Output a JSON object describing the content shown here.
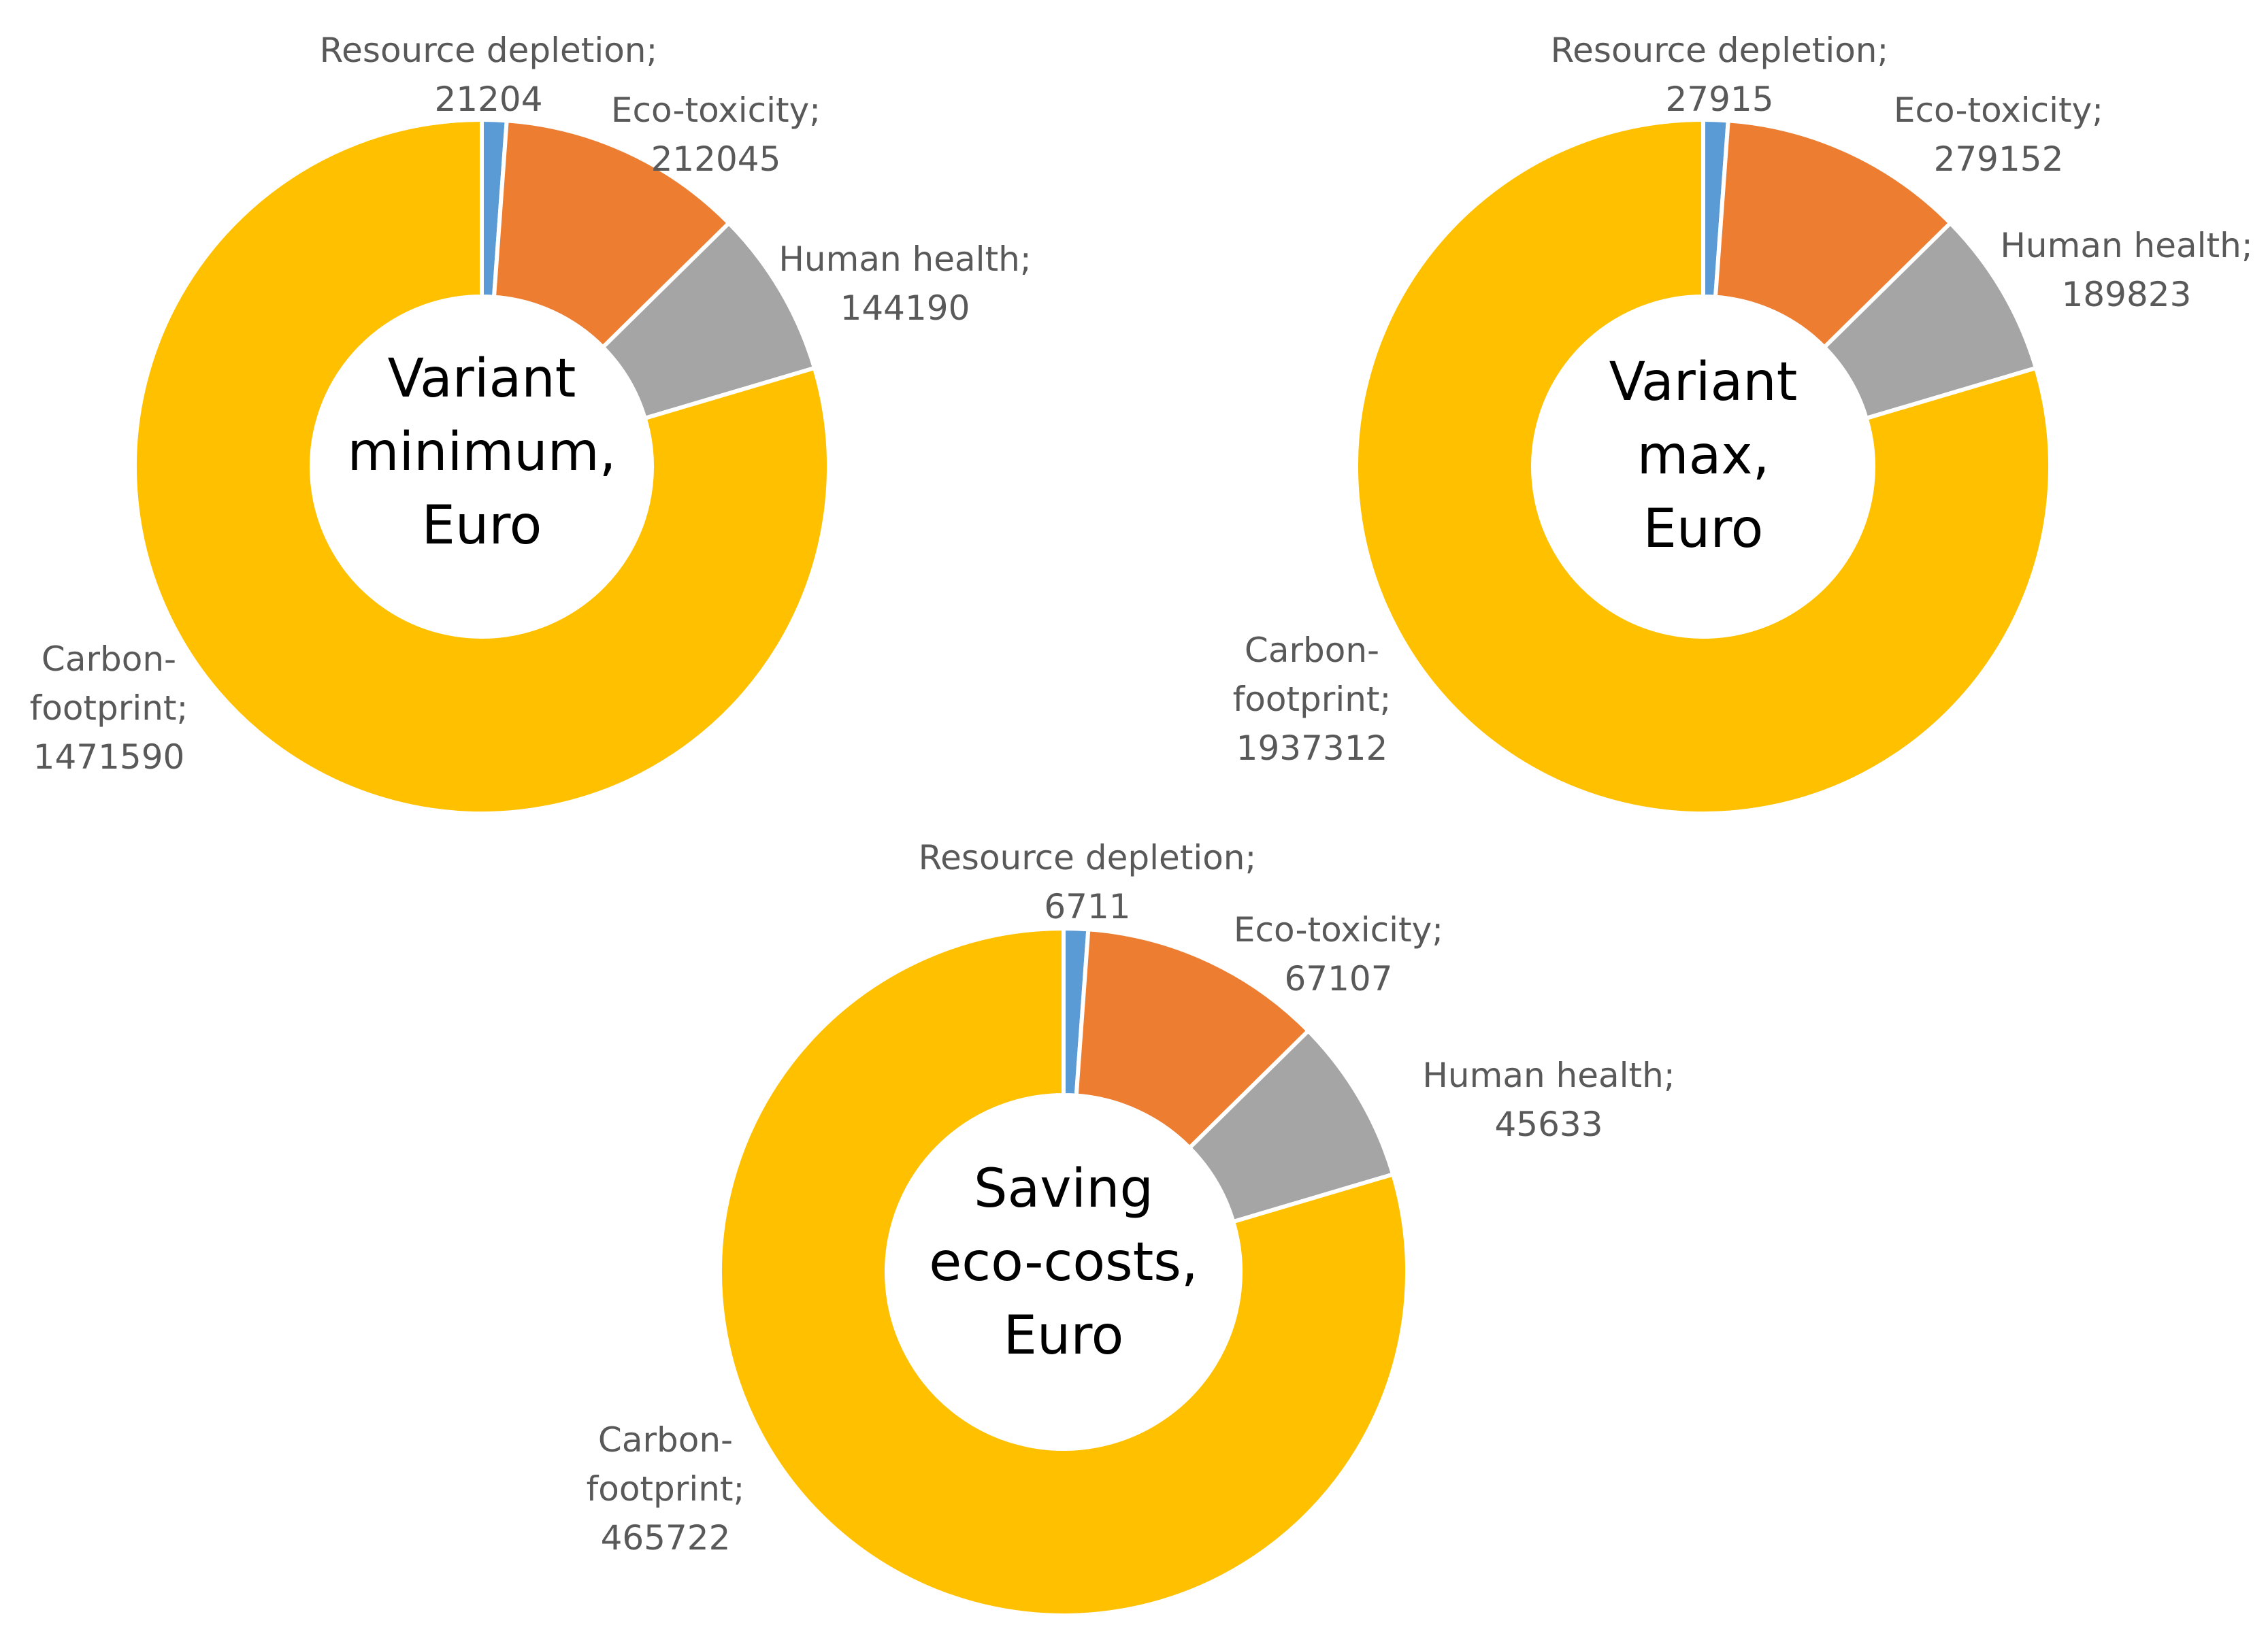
{
  "chart_data": [
    {
      "type": "pie",
      "title": "",
      "center_label": [
        "Variant",
        "minimum,",
        "Euro"
      ],
      "categories": [
        "Resource depletion",
        "Eco-toxicity",
        "Human health",
        "Carbon-footprint"
      ],
      "values": [
        21204,
        212045,
        144190,
        1471590
      ],
      "colors": [
        "#5B9BD5",
        "#ED7D31",
        "#A5A5A5",
        "#FFC000"
      ],
      "data_labels": [
        [
          "Resource depletion;",
          "21204"
        ],
        [
          "Eco-toxicity;",
          "212045"
        ],
        [
          "Human health;",
          "144190"
        ],
        [
          "Carbon-",
          "footprint;",
          "1471590"
        ]
      ],
      "donut": true,
      "legend": "none"
    },
    {
      "type": "pie",
      "title": "",
      "center_label": [
        "Variant",
        "max,",
        "Euro"
      ],
      "categories": [
        "Resource depletion",
        "Eco-toxicity",
        "Human health",
        "Carbon-footprint"
      ],
      "values": [
        27915,
        279152,
        189823,
        1937312
      ],
      "colors": [
        "#5B9BD5",
        "#ED7D31",
        "#A5A5A5",
        "#FFC000"
      ],
      "data_labels": [
        [
          "Resource depletion;",
          "27915"
        ],
        [
          "Eco-toxicity;",
          "279152"
        ],
        [
          "Human health;",
          "189823"
        ],
        [
          "Carbon-",
          "footprint;",
          "1937312"
        ]
      ],
      "donut": true,
      "legend": "none"
    },
    {
      "type": "pie",
      "title": "",
      "center_label": [
        "Saving",
        "eco-costs,",
        "Euro"
      ],
      "categories": [
        "Resource depletion",
        "Eco-toxicity",
        "Human health",
        "Carbon-footprint"
      ],
      "values": [
        6711,
        67107,
        45633,
        465722
      ],
      "colors": [
        "#5B9BD5",
        "#ED7D31",
        "#A5A5A5",
        "#FFC000"
      ],
      "data_labels": [
        [
          "Resource depletion;",
          "6711"
        ],
        [
          "Eco-toxicity;",
          "67107"
        ],
        [
          "Human health;",
          "45633"
        ],
        [
          "Carbon-",
          "footprint;",
          "465722"
        ]
      ],
      "donut": true,
      "legend": "none"
    }
  ]
}
